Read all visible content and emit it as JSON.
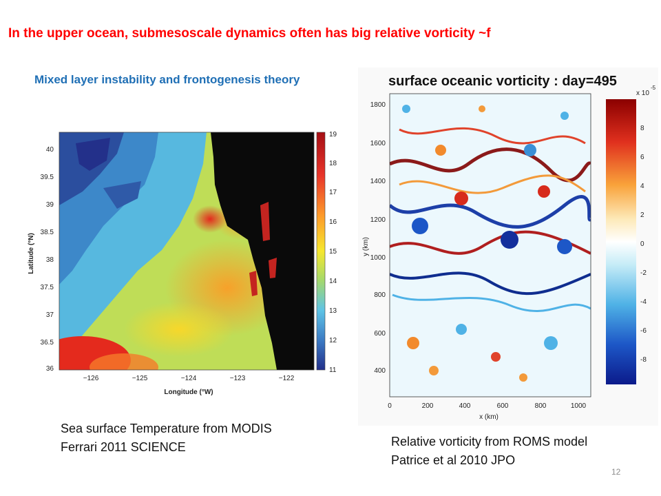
{
  "slide": {
    "title": "In the upper ocean, submesoscale dynamics often has big relative vorticity ~f",
    "subtitle": "Mixed layer instability and frontogenesis theory",
    "caption_left": [
      "Sea surface Temperature from MODIS",
      "Ferrari 2011 SCIENCE"
    ],
    "caption_right": [
      "Relative vorticity from ROMS model",
      "Patrice et al 2010 JPO"
    ],
    "page_number": "12"
  },
  "sst_figure": {
    "xlabel": "Longitude (°W)",
    "ylabel": "Latitude (°N)",
    "x_ticks": [
      "−126",
      "−125",
      "−124",
      "−123",
      "−122"
    ],
    "y_ticks": [
      "40",
      "39.5",
      "39",
      "38.5",
      "38",
      "37.5",
      "37",
      "36.5",
      "36"
    ],
    "colorbar_ticks": [
      "19",
      "18",
      "17",
      "16",
      "15",
      "14",
      "13",
      "12",
      "11"
    ]
  },
  "vorticity_figure": {
    "title": "surface oceanic vorticity : day=495",
    "xlabel": "x (km)",
    "ylabel": "y (km)",
    "x_ticks": [
      "0",
      "200",
      "400",
      "600",
      "800",
      "1000"
    ],
    "y_ticks": [
      "1800",
      "1600",
      "1400",
      "1200",
      "1000",
      "800",
      "600",
      "400"
    ],
    "colorbar_exponent": "x 10",
    "colorbar_exponent_power": "-5",
    "colorbar_ticks": [
      "8",
      "6",
      "4",
      "2",
      "0",
      "-2",
      "-4",
      "-6",
      "-8"
    ]
  },
  "colors": {
    "title": "#ff0000",
    "subtitle": "#1f6fb5",
    "land": "#0a0a0a"
  }
}
